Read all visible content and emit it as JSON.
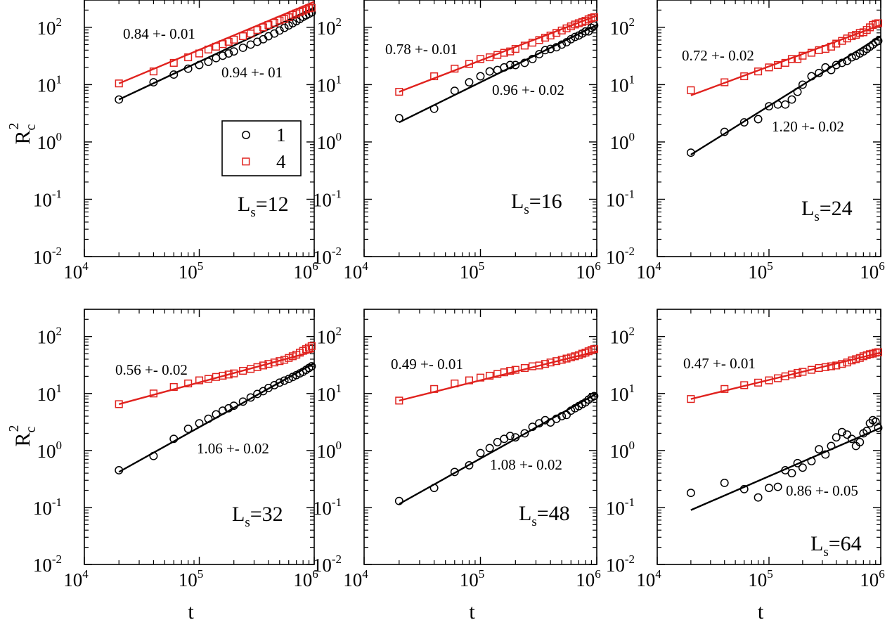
{
  "colors": {
    "series1": "#000000",
    "series4": "#e0221e"
  },
  "axes": {
    "xlabel": "t",
    "ylabel_main": "R",
    "ylabel_sub": "c",
    "ylabel_sup": "2",
    "xscale": "log",
    "yscale": "log",
    "xlim": [
      10000,
      1000000
    ],
    "ylim": [
      0.01,
      300
    ],
    "xticks": [
      {
        "base": "10",
        "exp": "4"
      },
      {
        "base": "10",
        "exp": "5"
      },
      {
        "base": "10",
        "exp": "6"
      }
    ],
    "yticks": [
      {
        "base": "10",
        "exp": "-2"
      },
      {
        "base": "10",
        "exp": "-1"
      },
      {
        "base": "10",
        "exp": "0"
      },
      {
        "base": "10",
        "exp": "1"
      },
      {
        "base": "10",
        "exp": "2"
      }
    ]
  },
  "legend": {
    "placement": "upper-left of first panel",
    "series1": "1",
    "series4": "4"
  },
  "chart_data": [
    {
      "type": "scatter",
      "label_main": "L",
      "label_sub": "s",
      "label_val": "=12",
      "slope_black": "0.94 +- 01",
      "slope_red": "0.84 +- 0.01",
      "series": [
        {
          "name": "1",
          "x": [
            20000,
            40000,
            60000,
            80000,
            100000,
            120000,
            140000,
            160000,
            180000,
            200000,
            240000,
            280000,
            320000,
            360000,
            400000,
            450000,
            500000,
            550000,
            600000,
            650000,
            700000,
            750000,
            800000,
            850000,
            900000,
            950000
          ],
          "y": [
            5.5,
            11,
            15,
            19,
            22,
            25,
            29,
            32,
            35,
            38,
            44,
            50,
            56,
            62,
            70,
            78,
            88,
            98,
            108,
            118,
            128,
            140,
            152,
            162,
            172,
            182
          ],
          "fit": {
            "x": [
              20000,
              1000000
            ],
            "y": [
              5.5,
              220
            ]
          }
        },
        {
          "name": "4",
          "x": [
            20000,
            40000,
            60000,
            80000,
            100000,
            120000,
            140000,
            160000,
            180000,
            200000,
            240000,
            280000,
            320000,
            360000,
            400000,
            450000,
            500000,
            550000,
            600000,
            650000,
            700000,
            750000,
            800000,
            850000,
            900000,
            950000
          ],
          "y": [
            10.5,
            17,
            24,
            30,
            35,
            41,
            46,
            51,
            56,
            61,
            70,
            78,
            90,
            100,
            110,
            120,
            132,
            140,
            150,
            165,
            175,
            185,
            195,
            205,
            215,
            220
          ],
          "fit": {
            "x": [
              20000,
              1000000
            ],
            "y": [
              10.5,
              280
            ]
          }
        }
      ]
    },
    {
      "type": "scatter",
      "label_main": "L",
      "label_sub": "s",
      "label_val": "=16",
      "slope_black": "0.96 +- 0.02",
      "slope_red": "0.78 +- 0.01",
      "series": [
        {
          "name": "1",
          "x": [
            20000,
            40000,
            60000,
            80000,
            100000,
            120000,
            140000,
            160000,
            180000,
            200000,
            240000,
            280000,
            320000,
            360000,
            400000,
            450000,
            500000,
            550000,
            600000,
            650000,
            700000,
            750000,
            800000,
            850000,
            900000,
            950000
          ],
          "y": [
            2.6,
            3.8,
            7.8,
            11,
            14,
            17,
            18,
            20,
            22,
            22,
            24,
            28,
            34,
            40,
            42,
            45,
            50,
            55,
            62,
            68,
            72,
            78,
            85,
            85,
            98,
            108
          ],
          "fit": {
            "x": [
              20000,
              1000000
            ],
            "y": [
              2.2,
              110
            ]
          }
        },
        {
          "name": "4",
          "x": [
            20000,
            40000,
            60000,
            80000,
            100000,
            120000,
            140000,
            160000,
            180000,
            200000,
            240000,
            280000,
            320000,
            360000,
            400000,
            450000,
            500000,
            550000,
            600000,
            650000,
            700000,
            750000,
            800000,
            850000,
            900000,
            950000
          ],
          "y": [
            7.5,
            14,
            19,
            23,
            28,
            30,
            33,
            36,
            38,
            42,
            48,
            54,
            60,
            66,
            72,
            80,
            88,
            96,
            104,
            112,
            118,
            124,
            130,
            138,
            145,
            150
          ],
          "fit": {
            "x": [
              20000,
              1000000
            ],
            "y": [
              7.5,
              160
            ]
          }
        }
      ]
    },
    {
      "type": "scatter",
      "label_main": "L",
      "label_sub": "s",
      "label_val": "=24",
      "slope_black": "1.20 +- 0.02",
      "slope_red": "0.72 +- 0.02",
      "series": [
        {
          "name": "1",
          "x": [
            20000,
            40000,
            60000,
            80000,
            100000,
            120000,
            140000,
            160000,
            180000,
            200000,
            240000,
            280000,
            320000,
            360000,
            400000,
            450000,
            500000,
            550000,
            600000,
            650000,
            700000,
            750000,
            800000,
            850000,
            900000,
            950000
          ],
          "y": [
            0.65,
            1.5,
            2.2,
            2.5,
            4.2,
            4.5,
            4.5,
            5.5,
            7.5,
            10,
            14,
            16,
            20,
            18,
            22,
            24,
            26,
            30,
            32,
            35,
            38,
            42,
            46,
            50,
            55,
            58
          ],
          "fit": {
            "x": [
              20000,
              1000000
            ],
            "y": [
              0.6,
              70
            ]
          }
        },
        {
          "name": "4",
          "x": [
            20000,
            40000,
            60000,
            80000,
            100000,
            120000,
            140000,
            160000,
            180000,
            200000,
            240000,
            280000,
            320000,
            360000,
            400000,
            450000,
            500000,
            550000,
            600000,
            650000,
            700000,
            750000,
            800000,
            850000,
            900000,
            950000
          ],
          "y": [
            8,
            11,
            14,
            17,
            20,
            22,
            24,
            28,
            28,
            32,
            36,
            40,
            42,
            46,
            52,
            58,
            64,
            70,
            74,
            80,
            82,
            90,
            100,
            110,
            115,
            118
          ],
          "fit": {
            "x": [
              20000,
              1000000
            ],
            "y": [
              6.5,
              110
            ]
          }
        }
      ]
    },
    {
      "type": "scatter",
      "label_main": "L",
      "label_sub": "s",
      "label_val": "=32",
      "slope_black": "1.06 +- 0.02",
      "slope_red": "0.56 +- 0.02",
      "series": [
        {
          "name": "1",
          "x": [
            20000,
            40000,
            60000,
            80000,
            100000,
            120000,
            140000,
            160000,
            180000,
            200000,
            240000,
            280000,
            320000,
            360000,
            400000,
            450000,
            500000,
            550000,
            600000,
            650000,
            700000,
            750000,
            800000,
            850000,
            900000,
            950000
          ],
          "y": [
            0.45,
            0.8,
            1.6,
            2.4,
            3,
            3.6,
            4.3,
            5,
            5.5,
            6.1,
            7.2,
            8.5,
            9.8,
            11,
            12.5,
            14,
            15.5,
            16.8,
            18,
            19.5,
            21,
            22.5,
            24,
            26,
            28,
            30
          ],
          "fit": {
            "x": [
              20000,
              1000000
            ],
            "y": [
              0.42,
              34
            ]
          }
        },
        {
          "name": "4",
          "x": [
            20000,
            40000,
            60000,
            80000,
            100000,
            120000,
            140000,
            160000,
            180000,
            200000,
            240000,
            280000,
            320000,
            360000,
            400000,
            450000,
            500000,
            550000,
            600000,
            650000,
            700000,
            750000,
            800000,
            850000,
            900000,
            950000
          ],
          "y": [
            6.5,
            10,
            13,
            15,
            17,
            18,
            19.5,
            20.5,
            21.5,
            22.5,
            25,
            27,
            29,
            31,
            33,
            35,
            37,
            39,
            42,
            45,
            48,
            52,
            56,
            60,
            64,
            68
          ],
          "fit": {
            "x": [
              20000,
              1000000
            ],
            "y": [
              6.5,
              55
            ]
          }
        }
      ]
    },
    {
      "type": "scatter",
      "label_main": "L",
      "label_sub": "s",
      "label_val": "=48",
      "slope_black": "1.08 +- 0.02",
      "slope_red": "0.49 +- 0.01",
      "series": [
        {
          "name": "1",
          "x": [
            20000,
            40000,
            60000,
            80000,
            100000,
            120000,
            140000,
            160000,
            180000,
            200000,
            240000,
            280000,
            320000,
            360000,
            400000,
            450000,
            500000,
            550000,
            600000,
            650000,
            700000,
            750000,
            800000,
            850000,
            900000,
            950000
          ],
          "y": [
            0.13,
            0.22,
            0.42,
            0.55,
            0.9,
            1.1,
            1.4,
            1.6,
            1.8,
            1.7,
            2,
            2.6,
            3,
            3.4,
            3.1,
            3.6,
            4,
            4.2,
            5,
            5.5,
            6,
            6.5,
            7,
            7.8,
            8.5,
            9
          ],
          "fit": {
            "x": [
              20000,
              1000000
            ],
            "y": [
              0.115,
              10
            ]
          }
        },
        {
          "name": "4",
          "x": [
            20000,
            40000,
            60000,
            80000,
            100000,
            120000,
            140000,
            160000,
            180000,
            200000,
            240000,
            280000,
            320000,
            360000,
            400000,
            450000,
            500000,
            550000,
            600000,
            650000,
            700000,
            750000,
            800000,
            850000,
            900000,
            950000
          ],
          "y": [
            7.5,
            12,
            15,
            17,
            19,
            20.5,
            22,
            23.5,
            25,
            26,
            28,
            30,
            31,
            33,
            35,
            37,
            39,
            41,
            43,
            45,
            47,
            50,
            52,
            55,
            58,
            60
          ],
          "fit": {
            "x": [
              20000,
              1000000
            ],
            "y": [
              7.5,
              55
            ]
          }
        }
      ]
    },
    {
      "type": "scatter",
      "label_main": "L",
      "label_sub": "s",
      "label_val": "=64",
      "slope_black": "0.86 +- 0.05",
      "slope_red": "0.47 +- 0.01",
      "series": [
        {
          "name": "1",
          "x": [
            20000,
            40000,
            60000,
            80000,
            100000,
            120000,
            140000,
            160000,
            180000,
            200000,
            240000,
            280000,
            320000,
            360000,
            400000,
            450000,
            500000,
            550000,
            600000,
            650000,
            700000,
            750000,
            800000,
            850000,
            900000,
            950000
          ],
          "y": [
            0.18,
            0.27,
            0.21,
            0.15,
            0.22,
            0.23,
            0.45,
            0.4,
            0.6,
            0.5,
            0.65,
            1.05,
            0.85,
            1.2,
            1.7,
            2.1,
            1.9,
            1.6,
            1.2,
            1.4,
            2,
            2.2,
            3,
            3.4,
            3.2,
            2.5
          ],
          "fit": {
            "x": [
              20000,
              1000000
            ],
            "y": [
              0.09,
              2.5
            ]
          }
        },
        {
          "name": "4",
          "x": [
            20000,
            40000,
            60000,
            80000,
            100000,
            120000,
            140000,
            160000,
            180000,
            200000,
            240000,
            280000,
            320000,
            360000,
            400000,
            450000,
            500000,
            550000,
            600000,
            650000,
            700000,
            750000,
            800000,
            850000,
            900000,
            950000
          ],
          "y": [
            8,
            12,
            14,
            15.5,
            17,
            18.5,
            20,
            21.5,
            23,
            24,
            26,
            28,
            29,
            30,
            31,
            33,
            35,
            38,
            40,
            42,
            45,
            47,
            49,
            50,
            52,
            53
          ],
          "fit": {
            "x": [
              20000,
              1000000
            ],
            "y": [
              8,
              52
            ]
          }
        }
      ]
    }
  ]
}
